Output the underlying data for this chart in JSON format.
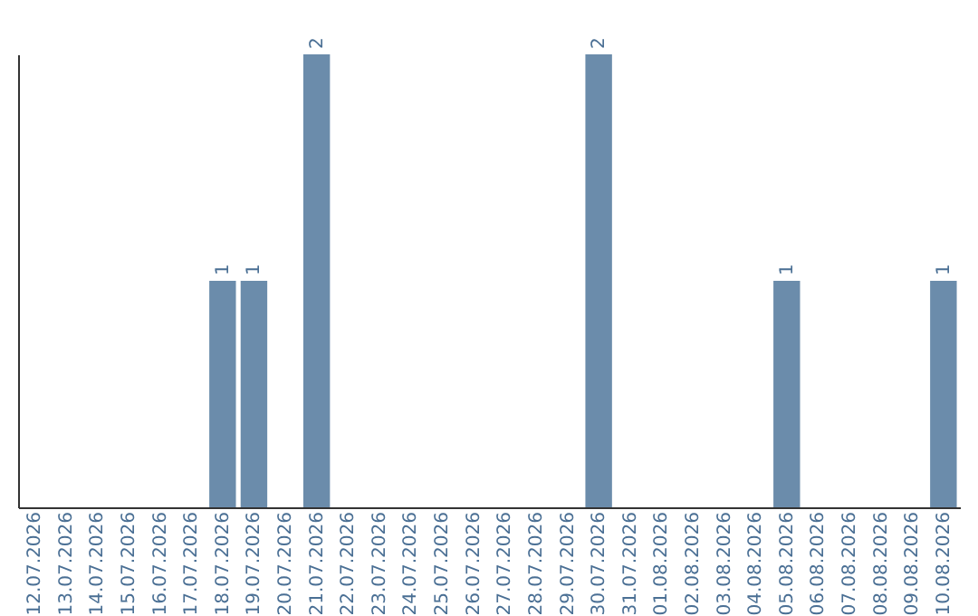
{
  "chart_data": {
    "type": "bar",
    "categories": [
      "12.07.2026",
      "13.07.2026",
      "14.07.2026",
      "15.07.2026",
      "16.07.2026",
      "17.07.2026",
      "18.07.2026",
      "19.07.2026",
      "20.07.2026",
      "21.07.2026",
      "22.07.2026",
      "23.07.2026",
      "24.07.2026",
      "25.07.2026",
      "26.07.2026",
      "27.07.2026",
      "28.07.2026",
      "29.07.2026",
      "30.07.2026",
      "31.07.2026",
      "01.08.2026",
      "02.08.2026",
      "03.08.2026",
      "04.08.2026",
      "05.08.2026",
      "06.08.2026",
      "07.08.2026",
      "08.08.2026",
      "09.08.2026",
      "10.08.2026"
    ],
    "values": [
      0,
      0,
      0,
      0,
      0,
      0,
      1,
      1,
      0,
      2,
      0,
      0,
      0,
      0,
      0,
      0,
      0,
      0,
      2,
      0,
      0,
      0,
      0,
      0,
      1,
      0,
      0,
      0,
      0,
      1
    ],
    "value_labels": [
      null,
      null,
      null,
      null,
      null,
      null,
      "1",
      "1",
      null,
      "2",
      null,
      null,
      null,
      null,
      null,
      null,
      null,
      null,
      "2",
      null,
      null,
      null,
      null,
      null,
      "1",
      null,
      null,
      null,
      null,
      "1"
    ],
    "color": "#6b8cab",
    "ylim": [
      0,
      2
    ],
    "tick_labels": "x"
  }
}
